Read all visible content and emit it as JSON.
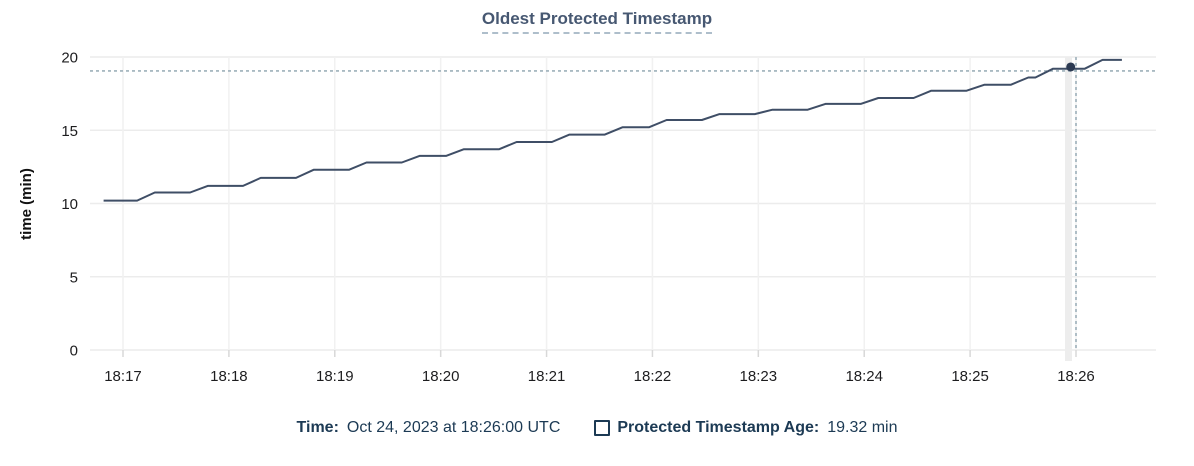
{
  "chart": {
    "title": "Oldest Protected Timestamp",
    "y_axis_label": "time (min)",
    "legend": {
      "time_label": "Time:",
      "time_value": "Oct 24, 2023 at 18:26:00 UTC",
      "series_label": "Protected Timestamp Age:",
      "series_value": "19.32 min"
    },
    "colors": {
      "line": "#3f4e66",
      "marker": "#2c3a52",
      "title_text": "#475872",
      "legend_text": "#1c3a54",
      "crosshair": "#9db0ba",
      "gridline_h": "#ececec",
      "gridline_v": "#f1f1f1",
      "tick_mark": "#d8d8d8",
      "tick_label": "#1d1d1f",
      "hover_band": "#ededed"
    }
  },
  "chart_data": {
    "type": "line",
    "title": "Oldest Protected Timestamp",
    "xlabel": "",
    "ylabel": "time (min)",
    "ylim": [
      0,
      20
    ],
    "y_ticks": [
      0,
      5,
      10,
      15,
      20
    ],
    "x_ticks": [
      {
        "t": 0,
        "label": "18:17"
      },
      {
        "t": 60,
        "label": "18:18"
      },
      {
        "t": 120,
        "label": "18:19"
      },
      {
        "t": 180,
        "label": "18:20"
      },
      {
        "t": 240,
        "label": "18:21"
      },
      {
        "t": 300,
        "label": "18:22"
      },
      {
        "t": 360,
        "label": "18:23"
      },
      {
        "t": 420,
        "label": "18:24"
      },
      {
        "t": 480,
        "label": "18:25"
      },
      {
        "t": 540,
        "label": "18:26"
      }
    ],
    "grid": true,
    "legend_position": "bottom",
    "series": [
      {
        "name": "Protected Timestamp Age",
        "unit": "min",
        "points_t_seconds_after_1817_value_min": [
          [
            -11,
            10.2
          ],
          [
            8,
            10.2
          ],
          [
            18,
            10.75
          ],
          [
            38,
            10.75
          ],
          [
            48,
            11.2
          ],
          [
            68,
            11.2
          ],
          [
            78,
            11.75
          ],
          [
            98,
            11.75
          ],
          [
            108,
            12.3
          ],
          [
            128,
            12.3
          ],
          [
            138,
            12.8
          ],
          [
            158,
            12.8
          ],
          [
            168,
            13.25
          ],
          [
            183,
            13.25
          ],
          [
            193,
            13.7
          ],
          [
            213,
            13.7
          ],
          [
            223,
            14.2
          ],
          [
            243,
            14.2
          ],
          [
            253,
            14.7
          ],
          [
            273,
            14.7
          ],
          [
            283,
            15.2
          ],
          [
            298,
            15.2
          ],
          [
            308,
            15.7
          ],
          [
            328,
            15.7
          ],
          [
            338,
            16.1
          ],
          [
            358,
            16.1
          ],
          [
            368,
            16.4
          ],
          [
            388,
            16.4
          ],
          [
            398,
            16.8
          ],
          [
            418,
            16.8
          ],
          [
            428,
            17.2
          ],
          [
            448,
            17.2
          ],
          [
            458,
            17.7
          ],
          [
            478,
            17.7
          ],
          [
            488,
            18.1
          ],
          [
            503,
            18.1
          ],
          [
            513,
            18.6
          ],
          [
            517,
            18.6
          ],
          [
            527,
            19.2
          ],
          [
            545,
            19.2
          ],
          [
            555,
            19.8
          ],
          [
            566,
            19.8
          ]
        ]
      }
    ],
    "crosshair": {
      "time_label": "18:26",
      "t_seconds": 540,
      "h_guide_value_min": 19.05,
      "marker_t_seconds": 537,
      "marker_value_min": 19.32
    }
  }
}
